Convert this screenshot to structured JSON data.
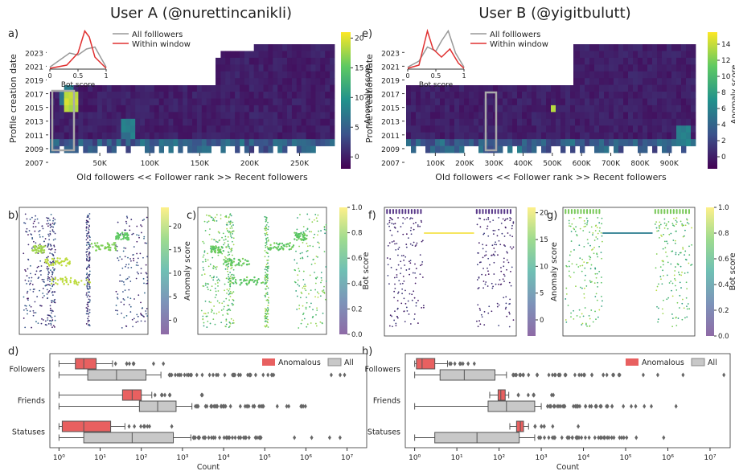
{
  "titles": {
    "user_a": "User A (@nurettincanikli)",
    "user_b": "User B (@yigitbulutt)"
  },
  "panel_letters": {
    "a": "a)",
    "b": "b)",
    "c": "c)",
    "d": "d)",
    "e": "e)",
    "f": "f)",
    "g": "g)",
    "h": "h)"
  },
  "colors": {
    "anomalous": "#e86060",
    "all": "#c8c8c8",
    "all_line": "#999999",
    "viridis_low": "#440154",
    "viridis_high": "#fde725"
  },
  "chart_data": [
    {
      "id": "a",
      "type": "heatmap",
      "ylabel": "Profile creation date",
      "xlabel": "Old followers << Follower rank >> Recent followers",
      "yticks": [
        "2007",
        "2009",
        "2011",
        "2013",
        "2015",
        "2017",
        "2019",
        "2021",
        "2023"
      ],
      "xticks": [
        "50K",
        "100K",
        "150K",
        "200K",
        "250K"
      ],
      "xlim": [
        0,
        285000
      ],
      "colorbar": {
        "label": "Anomaly score",
        "ticks": [
          "0",
          "5",
          "10",
          "15",
          "20"
        ],
        "range": [
          -2,
          21
        ]
      },
      "inset": {
        "type": "line",
        "xlabel": "Bot score",
        "xticks": [
          "0",
          "0.5",
          "1"
        ],
        "legend": [
          "All folllowers",
          "Within window"
        ]
      }
    },
    {
      "id": "e",
      "type": "heatmap",
      "ylabel": "Profile creation date",
      "xlabel": "Old followers << Follower rank >> Recent followers",
      "yticks": [
        "2007",
        "2009",
        "2011",
        "2013",
        "2015",
        "2017",
        "2019",
        "2021",
        "2023"
      ],
      "xticks": [
        "100K",
        "200K",
        "300K",
        "400K",
        "500K",
        "600K",
        "700K",
        "800K",
        "900K"
      ],
      "xlim": [
        0,
        990000
      ],
      "colorbar": {
        "label": "Anomaly score",
        "ticks": [
          "0",
          "2",
          "4",
          "6",
          "8",
          "10",
          "12",
          "14"
        ],
        "range": [
          -1.5,
          15.5
        ]
      },
      "inset": {
        "type": "line",
        "xlabel": "Bot score",
        "xticks": [
          "0",
          "0.5",
          "1"
        ],
        "legend": [
          "All folllowers",
          "Within window"
        ]
      }
    },
    {
      "id": "b",
      "type": "scatter",
      "colorbar": {
        "label": "Anomaly score",
        "ticks": [
          "0",
          "5",
          "10",
          "15",
          "20"
        ],
        "range": [
          -3,
          24
        ]
      }
    },
    {
      "id": "c",
      "type": "scatter",
      "colorbar": {
        "label": "Bot score",
        "ticks": [
          "0.0",
          "0.2",
          "0.4",
          "0.6",
          "0.8",
          "1.0"
        ],
        "range": [
          0,
          1
        ]
      }
    },
    {
      "id": "f",
      "type": "scatter",
      "colorbar": {
        "label": "Anomaly score",
        "ticks": [
          "0",
          "5",
          "10",
          "15",
          "20"
        ],
        "range": [
          -3,
          21
        ]
      }
    },
    {
      "id": "g",
      "type": "scatter",
      "colorbar": {
        "label": "Bot score",
        "ticks": [
          "0.0",
          "0.2",
          "0.4",
          "0.6",
          "0.8",
          "1.0"
        ],
        "range": [
          0,
          1
        ]
      }
    },
    {
      "id": "d",
      "type": "boxplot",
      "xscale": "log",
      "xlabel": "Count",
      "xlim": [
        0.6,
        30000000
      ],
      "categories": [
        "Followers",
        "Friends",
        "Statuses"
      ],
      "legend": [
        "Anomalous",
        "All"
      ],
      "series": [
        {
          "name": "Anomalous",
          "boxes": [
            {
              "whislo": 1,
              "q1": 2.5,
              "med": 4,
              "q3": 8,
              "whishi": 20
            },
            {
              "whislo": 1,
              "q1": 35,
              "med": 60,
              "q3": 100,
              "whishi": 180
            },
            {
              "whislo": 1,
              "q1": 1.2,
              "med": 4,
              "q3": 18,
              "whishi": 40
            }
          ]
        },
        {
          "name": "All",
          "boxes": [
            {
              "whislo": 1,
              "q1": 5,
              "med": 25,
              "q3": 130,
              "whishi": 300
            },
            {
              "whislo": 1,
              "q1": 90,
              "med": 250,
              "q3": 700,
              "whishi": 1700
            },
            {
              "whislo": 1,
              "q1": 4,
              "med": 60,
              "q3": 600,
              "whishi": 1600
            }
          ]
        }
      ]
    },
    {
      "id": "h",
      "type": "boxplot",
      "xscale": "log",
      "xlabel": "Count",
      "xlim": [
        0.6,
        30000000
      ],
      "categories": [
        "Followers",
        "Friends",
        "Statuses"
      ],
      "legend": [
        "Anomalous",
        "All"
      ],
      "series": [
        {
          "name": "Anomalous",
          "boxes": [
            {
              "whislo": 1,
              "q1": 1.1,
              "med": 1.5,
              "q3": 3,
              "whishi": 6
            },
            {
              "whislo": 60,
              "q1": 95,
              "med": 110,
              "q3": 140,
              "whishi": 170
            },
            {
              "whislo": 180,
              "q1": 260,
              "med": 320,
              "q3": 380,
              "whishi": 500
            }
          ]
        },
        {
          "name": "All",
          "boxes": [
            {
              "whislo": 1,
              "q1": 4,
              "med": 15,
              "q3": 80,
              "whishi": 150
            },
            {
              "whislo": 1,
              "q1": 55,
              "med": 150,
              "q3": 700,
              "whishi": 1000
            },
            {
              "whislo": 1,
              "q1": 3,
              "med": 30,
              "q3": 300,
              "whishi": 700
            }
          ]
        }
      ]
    }
  ],
  "box_xticks": [
    "10⁰",
    "10¹",
    "10²",
    "10³",
    "10⁴",
    "10⁵",
    "10⁶",
    "10⁷"
  ]
}
